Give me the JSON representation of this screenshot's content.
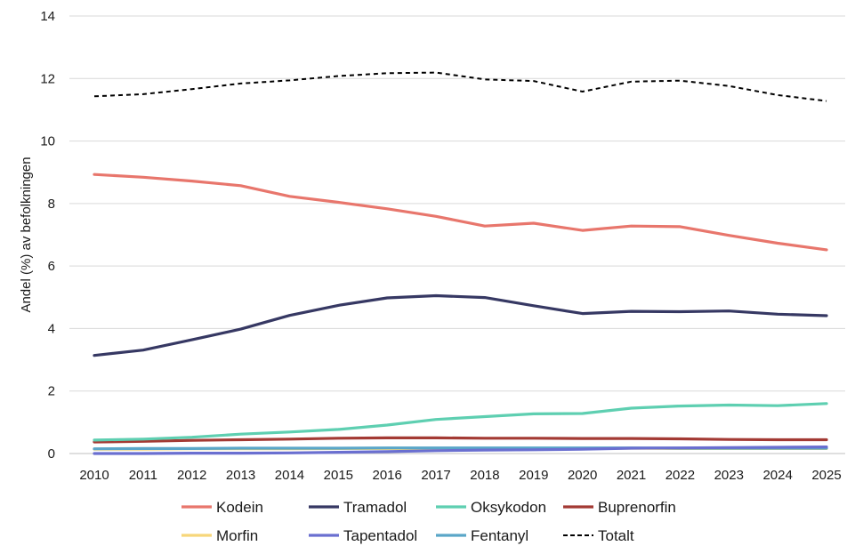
{
  "chart_data": {
    "type": "line",
    "title": "",
    "xlabel": "",
    "ylabel": "Andel (%) av befolkningen",
    "ylim": [
      0,
      14
    ],
    "yticks": [
      "0",
      "2",
      "4",
      "6",
      "8",
      "10",
      "12",
      "14"
    ],
    "x": [
      "2010",
      "2011",
      "2012",
      "2013",
      "2014",
      "2015",
      "2016",
      "2017",
      "2018",
      "2019",
      "2020",
      "2021",
      "2022",
      "2023",
      "2024",
      "2025"
    ],
    "grid": "horizontal",
    "legend_position": "bottom",
    "series": [
      {
        "name": "Kodein",
        "color": "#e8766c",
        "dash": "solid",
        "values": [
          8.93,
          8.84,
          8.72,
          8.57,
          8.23,
          8.04,
          7.83,
          7.59,
          7.28,
          7.37,
          7.14,
          7.28,
          7.26,
          6.98,
          6.73,
          6.52
        ]
      },
      {
        "name": "Tramadol",
        "color": "#363863",
        "dash": "solid",
        "values": [
          3.14,
          3.31,
          3.64,
          3.98,
          4.42,
          4.74,
          4.98,
          5.05,
          4.99,
          4.73,
          4.48,
          4.55,
          4.54,
          4.56,
          4.46,
          4.41
        ]
      },
      {
        "name": "Oksykodon",
        "color": "#5ecfb1",
        "dash": "solid",
        "values": [
          0.43,
          0.46,
          0.52,
          0.62,
          0.69,
          0.77,
          0.91,
          1.09,
          1.18,
          1.27,
          1.28,
          1.45,
          1.52,
          1.55,
          1.53,
          1.6
        ]
      },
      {
        "name": "Buprenorfin",
        "color": "#a33a34",
        "dash": "solid",
        "values": [
          0.37,
          0.39,
          0.42,
          0.44,
          0.46,
          0.49,
          0.5,
          0.5,
          0.49,
          0.49,
          0.48,
          0.48,
          0.47,
          0.45,
          0.44,
          0.44
        ]
      },
      {
        "name": "Morfin",
        "color": "#f7d67a",
        "dash": "solid",
        "values": [
          0.14,
          0.14,
          0.15,
          0.15,
          0.15,
          0.16,
          0.16,
          0.16,
          0.16,
          0.16,
          0.16,
          0.17,
          0.16,
          0.16,
          0.16,
          0.16
        ]
      },
      {
        "name": "Tapentadol",
        "color": "#6a6fd0",
        "dash": "solid",
        "values": [
          0.0,
          0.0,
          0.01,
          0.01,
          0.02,
          0.04,
          0.06,
          0.09,
          0.11,
          0.12,
          0.14,
          0.17,
          0.18,
          0.19,
          0.2,
          0.21
        ]
      },
      {
        "name": "Fentanyl",
        "color": "#5aa6c8",
        "dash": "solid",
        "values": [
          0.15,
          0.16,
          0.16,
          0.17,
          0.17,
          0.17,
          0.18,
          0.18,
          0.18,
          0.18,
          0.18,
          0.18,
          0.17,
          0.17,
          0.17,
          0.17
        ]
      },
      {
        "name": "Totalt",
        "color": "#000000",
        "dash": "dashed",
        "values": [
          11.43,
          11.5,
          11.66,
          11.84,
          11.94,
          12.08,
          12.17,
          12.19,
          11.97,
          11.92,
          11.58,
          11.9,
          11.93,
          11.76,
          11.47,
          11.28
        ]
      }
    ]
  }
}
